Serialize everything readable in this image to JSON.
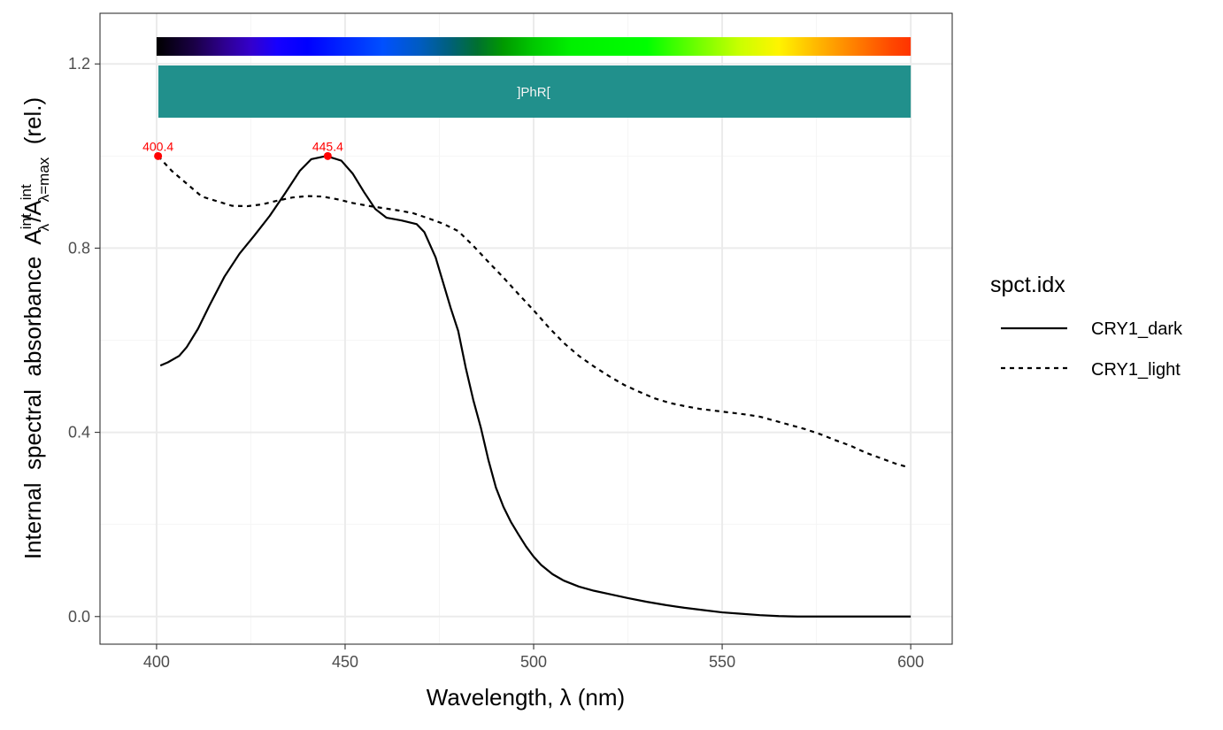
{
  "chart_data": {
    "type": "line",
    "title": "",
    "xlabel": "Wavelength, λ (nm)",
    "ylabel": {
      "prefix": "Internal  spectral  absorbance  ",
      "symbol": "A",
      "num_sub": "λ",
      "num_sup": "int",
      "slash": "/",
      "den_sub": "λ=max",
      "den_sup": "int",
      "suffix": "  (rel.)"
    },
    "xlim": [
      385,
      611
    ],
    "ylim": [
      -0.06,
      1.31
    ],
    "x_ticks": [
      400,
      450,
      500,
      550,
      600
    ],
    "x_tick_labels": [
      "400",
      "450",
      "500",
      "550",
      "600"
    ],
    "y_ticks": [
      0.0,
      0.4,
      0.8,
      1.2
    ],
    "y_tick_labels": [
      "0.0",
      "0.4",
      "0.8",
      "1.2"
    ],
    "grid": true,
    "legend": {
      "title": "spct.idx",
      "position": "right"
    },
    "series": [
      {
        "name": "CRY1_dark",
        "linetype": "solid",
        "points": [
          [
            401,
            0.545
          ],
          [
            403,
            0.552
          ],
          [
            406,
            0.566
          ],
          [
            408,
            0.585
          ],
          [
            411,
            0.625
          ],
          [
            414,
            0.675
          ],
          [
            418,
            0.738
          ],
          [
            422,
            0.788
          ],
          [
            426,
            0.828
          ],
          [
            430,
            0.87
          ],
          [
            434,
            0.918
          ],
          [
            438,
            0.968
          ],
          [
            441,
            0.993
          ],
          [
            445,
            1.0
          ],
          [
            449,
            0.99
          ],
          [
            452,
            0.962
          ],
          [
            455,
            0.922
          ],
          [
            458,
            0.885
          ],
          [
            461,
            0.866
          ],
          [
            465,
            0.86
          ],
          [
            469,
            0.852
          ],
          [
            471,
            0.835
          ],
          [
            474,
            0.78
          ],
          [
            476,
            0.725
          ],
          [
            478,
            0.67
          ],
          [
            480,
            0.62
          ],
          [
            482,
            0.54
          ],
          [
            484,
            0.47
          ],
          [
            486,
            0.41
          ],
          [
            488,
            0.34
          ],
          [
            490,
            0.28
          ],
          [
            492,
            0.238
          ],
          [
            494,
            0.205
          ],
          [
            496,
            0.178
          ],
          [
            498,
            0.152
          ],
          [
            500,
            0.13
          ],
          [
            502,
            0.112
          ],
          [
            505,
            0.092
          ],
          [
            508,
            0.078
          ],
          [
            512,
            0.065
          ],
          [
            516,
            0.056
          ],
          [
            520,
            0.049
          ],
          [
            525,
            0.04
          ],
          [
            530,
            0.032
          ],
          [
            535,
            0.025
          ],
          [
            540,
            0.019
          ],
          [
            545,
            0.014
          ],
          [
            550,
            0.009
          ],
          [
            555,
            0.006
          ],
          [
            560,
            0.003
          ],
          [
            565,
            0.001
          ],
          [
            570,
            0.0
          ],
          [
            580,
            0.0
          ],
          [
            590,
            0.0
          ],
          [
            600,
            0.0
          ]
        ]
      },
      {
        "name": "CRY1_light",
        "linetype": "dashed",
        "points": [
          [
            400.4,
            1.0
          ],
          [
            404,
            0.968
          ],
          [
            408,
            0.94
          ],
          [
            412,
            0.912
          ],
          [
            416,
            0.902
          ],
          [
            420,
            0.892
          ],
          [
            424,
            0.891
          ],
          [
            428,
            0.895
          ],
          [
            432,
            0.903
          ],
          [
            436,
            0.91
          ],
          [
            440,
            0.913
          ],
          [
            444,
            0.912
          ],
          [
            448,
            0.906
          ],
          [
            452,
            0.898
          ],
          [
            456,
            0.892
          ],
          [
            460,
            0.887
          ],
          [
            464,
            0.882
          ],
          [
            468,
            0.876
          ],
          [
            472,
            0.865
          ],
          [
            476,
            0.853
          ],
          [
            480,
            0.837
          ],
          [
            484,
            0.805
          ],
          [
            488,
            0.77
          ],
          [
            492,
            0.736
          ],
          [
            496,
            0.7
          ],
          [
            500,
            0.665
          ],
          [
            504,
            0.628
          ],
          [
            508,
            0.594
          ],
          [
            512,
            0.566
          ],
          [
            516,
            0.543
          ],
          [
            520,
            0.522
          ],
          [
            524,
            0.503
          ],
          [
            528,
            0.488
          ],
          [
            532,
            0.474
          ],
          [
            536,
            0.464
          ],
          [
            540,
            0.457
          ],
          [
            544,
            0.451
          ],
          [
            548,
            0.447
          ],
          [
            552,
            0.443
          ],
          [
            556,
            0.439
          ],
          [
            560,
            0.434
          ],
          [
            564,
            0.425
          ],
          [
            568,
            0.416
          ],
          [
            572,
            0.407
          ],
          [
            576,
            0.396
          ],
          [
            580,
            0.383
          ],
          [
            584,
            0.371
          ],
          [
            588,
            0.356
          ],
          [
            592,
            0.344
          ],
          [
            596,
            0.332
          ],
          [
            599,
            0.325
          ]
        ]
      }
    ],
    "peaks": [
      {
        "series": "CRY1_light",
        "x": 400.4,
        "y": 1.0,
        "label": "400.4"
      },
      {
        "series": "CRY1_dark",
        "x": 445.4,
        "y": 1.0,
        "label": "445.4"
      }
    ],
    "wavelength_band": {
      "label": "]PhR[",
      "x_range": [
        400,
        600
      ],
      "color": "#21908C",
      "text_color": "#F5F5F5"
    },
    "spectrum_colors": [
      [
        400,
        "#000000"
      ],
      [
        410,
        "#1A0046"
      ],
      [
        418,
        "#2E0090"
      ],
      [
        425,
        "#3400CC"
      ],
      [
        432,
        "#1600FF"
      ],
      [
        440,
        "#0000FF"
      ],
      [
        460,
        "#0050FF"
      ],
      [
        470,
        "#005CC0"
      ],
      [
        478,
        "#006078"
      ],
      [
        485,
        "#007030"
      ],
      [
        492,
        "#009A00"
      ],
      [
        500,
        "#00C800"
      ],
      [
        510,
        "#00F000"
      ],
      [
        530,
        "#00FF00"
      ],
      [
        545,
        "#7CFF00"
      ],
      [
        555,
        "#CCFF00"
      ],
      [
        565,
        "#FFF400"
      ],
      [
        575,
        "#FFB800"
      ],
      [
        585,
        "#FF8000"
      ],
      [
        595,
        "#FF4800"
      ],
      [
        600,
        "#FF3300"
      ]
    ],
    "colors": {
      "panel_border": "#333333",
      "grid_major": "#EBEBEB",
      "grid_minor": "#F5F5F5",
      "axis_text": "#4D4D4D",
      "peak_color": "#FF0000",
      "line_color": "#000000"
    }
  }
}
